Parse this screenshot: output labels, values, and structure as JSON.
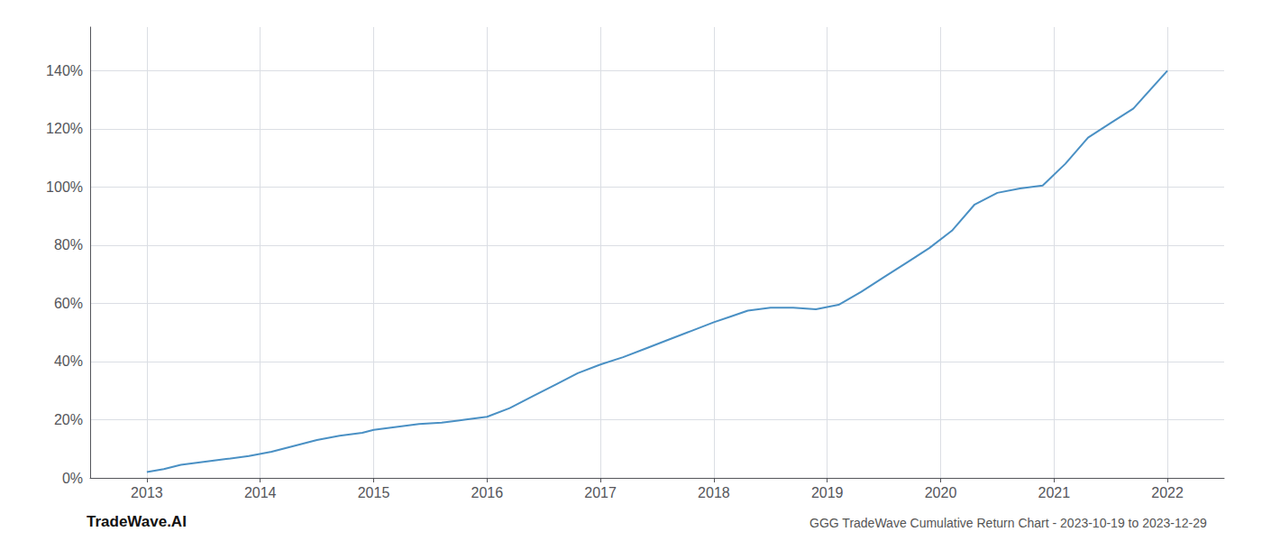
{
  "chart_data": {
    "type": "line",
    "title": "GGG TradeWave Cumulative Return Chart - 2023-10-19 to 2023-12-29",
    "annotations": [
      "TradeWave.AI"
    ],
    "color": "#4a90c4",
    "x": [
      2013.0,
      2013.15,
      2013.3,
      2013.5,
      2013.7,
      2013.9,
      2014.1,
      2014.3,
      2014.5,
      2014.7,
      2014.9,
      2015.0,
      2015.2,
      2015.4,
      2015.6,
      2015.8,
      2016.0,
      2016.2,
      2016.4,
      2016.6,
      2016.8,
      2017.0,
      2017.2,
      2017.4,
      2017.6,
      2017.8,
      2018.0,
      2018.15,
      2018.3,
      2018.5,
      2018.7,
      2018.9,
      2019.1,
      2019.3,
      2019.5,
      2019.7,
      2019.9,
      2020.1,
      2020.3,
      2020.5,
      2020.7,
      2020.9,
      2021.1,
      2021.3,
      2021.5,
      2021.7,
      2022.0
    ],
    "values": [
      2.0,
      3.0,
      4.5,
      5.5,
      6.5,
      7.5,
      9.0,
      11.0,
      13.0,
      14.5,
      15.5,
      16.5,
      17.5,
      18.5,
      19.0,
      20.0,
      21.0,
      24.0,
      28.0,
      32.0,
      36.0,
      39.0,
      41.5,
      44.5,
      47.5,
      50.5,
      53.5,
      55.5,
      57.5,
      58.5,
      58.5,
      58.0,
      59.5,
      64.0,
      69.0,
      74.0,
      79.0,
      85.0,
      94.0,
      98.0,
      99.5,
      100.5,
      108.0,
      117.0,
      122.0,
      127.0,
      140.0
    ],
    "xlim": [
      2012.5,
      2022.5
    ],
    "xticks": [
      2013,
      2014,
      2015,
      2016,
      2017,
      2018,
      2019,
      2020,
      2021,
      2022
    ],
    "ylim": [
      0,
      155
    ],
    "yticks": [
      {
        "value": 0,
        "label": "0%"
      },
      {
        "value": 20,
        "label": "20%"
      },
      {
        "value": 40,
        "label": "40%"
      },
      {
        "value": 60,
        "label": "60%"
      },
      {
        "value": 80,
        "label": "80%"
      },
      {
        "value": 100,
        "label": "100%"
      },
      {
        "value": 120,
        "label": "120%"
      },
      {
        "value": 140,
        "label": "140%"
      }
    ],
    "grid": true
  }
}
